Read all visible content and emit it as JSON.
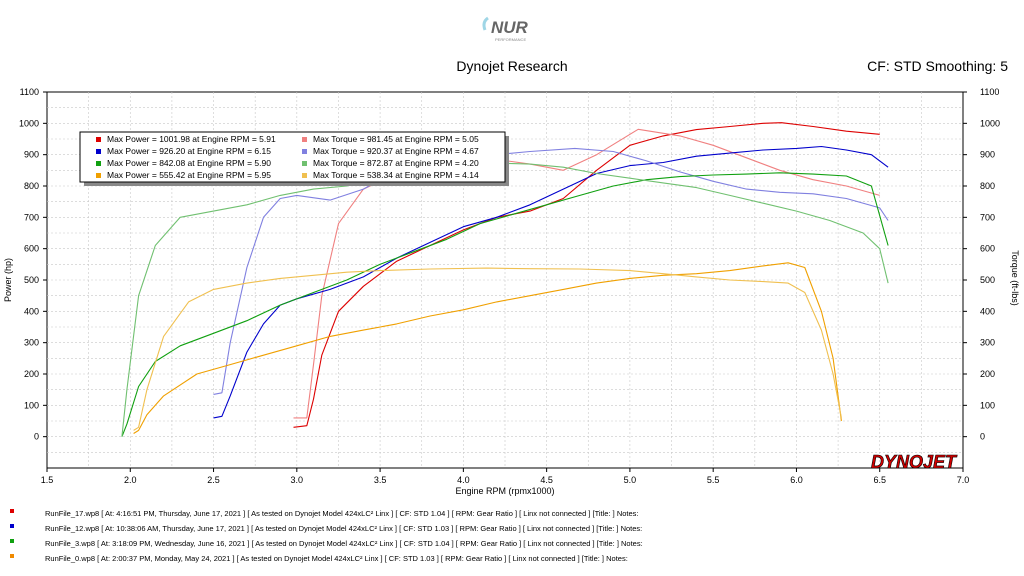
{
  "header": {
    "logo_text": "NUR",
    "logo_sub": "PERFORMANCE",
    "title": "Dynojet Research",
    "cf_info": "CF: STD Smoothing: 5",
    "brand": "DYNOJET"
  },
  "chart_data": {
    "type": "line",
    "title": "Dynojet Research",
    "xlabel": "Engine RPM (rpmx1000)",
    "ylabel_left": "Power (hp)",
    "ylabel_right": "Torque (ft-lbs)",
    "xlim": [
      1.5,
      7.0
    ],
    "ylim": [
      -100,
      1100
    ],
    "x_ticks": [
      "1.5",
      "2.0",
      "2.5",
      "3.0",
      "3.5",
      "4.0",
      "4.5",
      "5.0",
      "5.5",
      "6.0",
      "6.5",
      "7.0"
    ],
    "y_ticks": [
      "1100",
      "1000",
      "900",
      "800",
      "700",
      "600",
      "500",
      "400",
      "300",
      "200",
      "100",
      "0"
    ],
    "grid": true,
    "legend_position": "top-left",
    "legend": [
      {
        "text": "Max Power = 1001.98 at Engine RPM = 5.91",
        "color": "#dd0000"
      },
      {
        "text": "Max Torque = 981.45 at Engine RPM = 5.05",
        "color": "#f08080"
      },
      {
        "text": "Max Power = 926.20 at Engine RPM = 6.15",
        "color": "#0000cc"
      },
      {
        "text": "Max Torque = 920.37 at Engine RPM = 4.67",
        "color": "#8080e0"
      },
      {
        "text": "Max Power = 842.08 at Engine RPM = 5.90",
        "color": "#10a010"
      },
      {
        "text": "Max Torque = 872.87 at Engine RPM = 4.20",
        "color": "#70c070"
      },
      {
        "text": "Max Power = 555.42 at Engine RPM = 5.95",
        "color": "#f0a000"
      },
      {
        "text": "Max Torque = 538.34 at Engine RPM = 4.14",
        "color": "#f0c050"
      }
    ],
    "series": [
      {
        "name": "Max Power = 1001.98 at Engine RPM = 5.91",
        "kind": "power",
        "color": "#dd0000",
        "points": [
          [
            2.98,
            30
          ],
          [
            3.06,
            35
          ],
          [
            3.1,
            120
          ],
          [
            3.15,
            260
          ],
          [
            3.25,
            400
          ],
          [
            3.4,
            480
          ],
          [
            3.6,
            560
          ],
          [
            3.8,
            610
          ],
          [
            4.0,
            660
          ],
          [
            4.2,
            700
          ],
          [
            4.4,
            720
          ],
          [
            4.6,
            760
          ],
          [
            4.8,
            850
          ],
          [
            5.0,
            930
          ],
          [
            5.2,
            960
          ],
          [
            5.4,
            980
          ],
          [
            5.6,
            990
          ],
          [
            5.8,
            1000
          ],
          [
            5.91,
            1002
          ],
          [
            6.1,
            990
          ],
          [
            6.3,
            975
          ],
          [
            6.5,
            965
          ]
        ]
      },
      {
        "name": "Max Torque = 981.45 at Engine RPM = 5.05",
        "kind": "torque",
        "color": "#f08080",
        "points": [
          [
            2.98,
            60
          ],
          [
            3.06,
            60
          ],
          [
            3.1,
            230
          ],
          [
            3.15,
            450
          ],
          [
            3.25,
            680
          ],
          [
            3.4,
            790
          ],
          [
            3.6,
            840
          ],
          [
            3.8,
            865
          ],
          [
            4.0,
            880
          ],
          [
            4.2,
            885
          ],
          [
            4.4,
            870
          ],
          [
            4.6,
            850
          ],
          [
            4.8,
            900
          ],
          [
            5.05,
            981
          ],
          [
            5.3,
            960
          ],
          [
            5.5,
            930
          ],
          [
            5.7,
            890
          ],
          [
            5.9,
            850
          ],
          [
            6.1,
            820
          ],
          [
            6.3,
            800
          ],
          [
            6.5,
            770
          ]
        ]
      },
      {
        "name": "Max Power = 926.20 at Engine RPM = 6.15",
        "kind": "power",
        "color": "#0000cc",
        "points": [
          [
            2.5,
            60
          ],
          [
            2.55,
            65
          ],
          [
            2.6,
            130
          ],
          [
            2.7,
            270
          ],
          [
            2.8,
            360
          ],
          [
            2.9,
            420
          ],
          [
            3.0,
            440
          ],
          [
            3.2,
            470
          ],
          [
            3.4,
            510
          ],
          [
            3.6,
            570
          ],
          [
            3.8,
            620
          ],
          [
            4.0,
            670
          ],
          [
            4.2,
            700
          ],
          [
            4.4,
            740
          ],
          [
            4.6,
            790
          ],
          [
            4.8,
            840
          ],
          [
            5.0,
            865
          ],
          [
            5.2,
            875
          ],
          [
            5.4,
            895
          ],
          [
            5.6,
            905
          ],
          [
            5.8,
            915
          ],
          [
            6.0,
            920
          ],
          [
            6.15,
            926
          ],
          [
            6.3,
            915
          ],
          [
            6.45,
            900
          ],
          [
            6.55,
            860
          ]
        ]
      },
      {
        "name": "Max Torque = 920.37 at Engine RPM = 4.67",
        "kind": "torque",
        "color": "#8080e0",
        "points": [
          [
            2.5,
            135
          ],
          [
            2.55,
            140
          ],
          [
            2.6,
            300
          ],
          [
            2.7,
            540
          ],
          [
            2.8,
            700
          ],
          [
            2.9,
            760
          ],
          [
            3.0,
            770
          ],
          [
            3.2,
            755
          ],
          [
            3.4,
            790
          ],
          [
            3.6,
            850
          ],
          [
            3.8,
            880
          ],
          [
            4.0,
            895
          ],
          [
            4.2,
            900
          ],
          [
            4.4,
            910
          ],
          [
            4.67,
            920
          ],
          [
            4.9,
            910
          ],
          [
            5.1,
            880
          ],
          [
            5.3,
            845
          ],
          [
            5.5,
            815
          ],
          [
            5.7,
            790
          ],
          [
            5.9,
            780
          ],
          [
            6.1,
            775
          ],
          [
            6.3,
            760
          ],
          [
            6.5,
            730
          ],
          [
            6.55,
            690
          ]
        ]
      },
      {
        "name": "Max Power = 842.08 at Engine RPM = 5.90",
        "kind": "power",
        "color": "#10a010",
        "points": [
          [
            1.95,
            0
          ],
          [
            1.98,
            40
          ],
          [
            2.05,
            160
          ],
          [
            2.15,
            240
          ],
          [
            2.3,
            290
          ],
          [
            2.5,
            330
          ],
          [
            2.7,
            370
          ],
          [
            2.9,
            420
          ],
          [
            3.1,
            460
          ],
          [
            3.3,
            500
          ],
          [
            3.5,
            550
          ],
          [
            3.7,
            590
          ],
          [
            3.9,
            630
          ],
          [
            4.1,
            680
          ],
          [
            4.3,
            710
          ],
          [
            4.5,
            740
          ],
          [
            4.7,
            770
          ],
          [
            4.9,
            800
          ],
          [
            5.1,
            820
          ],
          [
            5.3,
            830
          ],
          [
            5.5,
            835
          ],
          [
            5.7,
            838
          ],
          [
            5.9,
            842
          ],
          [
            6.1,
            838
          ],
          [
            6.3,
            832
          ],
          [
            6.45,
            800
          ],
          [
            6.55,
            610
          ]
        ]
      },
      {
        "name": "Max Torque = 872.87 at Engine RPM = 4.20",
        "kind": "torque",
        "color": "#70c070",
        "points": [
          [
            1.95,
            0
          ],
          [
            1.98,
            150
          ],
          [
            2.05,
            450
          ],
          [
            2.15,
            610
          ],
          [
            2.3,
            700
          ],
          [
            2.5,
            720
          ],
          [
            2.7,
            740
          ],
          [
            2.9,
            770
          ],
          [
            3.1,
            790
          ],
          [
            3.3,
            800
          ],
          [
            3.5,
            820
          ],
          [
            3.8,
            850
          ],
          [
            4.0,
            865
          ],
          [
            4.2,
            873
          ],
          [
            4.4,
            870
          ],
          [
            4.6,
            860
          ],
          [
            4.8,
            840
          ],
          [
            5.0,
            825
          ],
          [
            5.2,
            810
          ],
          [
            5.4,
            795
          ],
          [
            5.6,
            770
          ],
          [
            5.8,
            745
          ],
          [
            6.0,
            720
          ],
          [
            6.2,
            690
          ],
          [
            6.4,
            650
          ],
          [
            6.5,
            600
          ],
          [
            6.55,
            490
          ]
        ]
      },
      {
        "name": "Max Power = 555.42 at Engine RPM = 5.95",
        "kind": "power",
        "color": "#f0a000",
        "points": [
          [
            2.02,
            10
          ],
          [
            2.05,
            20
          ],
          [
            2.1,
            70
          ],
          [
            2.2,
            130
          ],
          [
            2.4,
            200
          ],
          [
            2.6,
            230
          ],
          [
            2.8,
            260
          ],
          [
            3.0,
            290
          ],
          [
            3.2,
            320
          ],
          [
            3.4,
            340
          ],
          [
            3.6,
            360
          ],
          [
            3.8,
            385
          ],
          [
            4.0,
            405
          ],
          [
            4.2,
            430
          ],
          [
            4.4,
            450
          ],
          [
            4.6,
            470
          ],
          [
            4.8,
            490
          ],
          [
            5.0,
            505
          ],
          [
            5.2,
            515
          ],
          [
            5.4,
            520
          ],
          [
            5.6,
            530
          ],
          [
            5.8,
            545
          ],
          [
            5.95,
            555
          ],
          [
            6.05,
            540
          ],
          [
            6.15,
            400
          ],
          [
            6.22,
            250
          ],
          [
            6.27,
            50
          ]
        ]
      },
      {
        "name": "Max Torque = 538.34 at Engine RPM = 4.14",
        "kind": "torque",
        "color": "#f0c050",
        "points": [
          [
            2.02,
            20
          ],
          [
            2.05,
            30
          ],
          [
            2.1,
            150
          ],
          [
            2.2,
            320
          ],
          [
            2.35,
            430
          ],
          [
            2.5,
            470
          ],
          [
            2.7,
            490
          ],
          [
            2.9,
            505
          ],
          [
            3.1,
            515
          ],
          [
            3.3,
            525
          ],
          [
            3.5,
            530
          ],
          [
            3.8,
            535
          ],
          [
            4.14,
            538
          ],
          [
            4.4,
            536
          ],
          [
            4.7,
            535
          ],
          [
            5.0,
            530
          ],
          [
            5.2,
            520
          ],
          [
            5.4,
            510
          ],
          [
            5.6,
            500
          ],
          [
            5.8,
            495
          ],
          [
            5.95,
            490
          ],
          [
            6.05,
            460
          ],
          [
            6.15,
            340
          ],
          [
            6.22,
            200
          ],
          [
            6.27,
            60
          ]
        ]
      }
    ]
  },
  "runs": [
    {
      "color": "#dd0000",
      "text": "RunFile_17.wp8  [ At:  4:16:51 PM, Thursday, June 17, 2021 ]  [ As tested on Dynojet Model 424xLC² Linx ]  [ CF: STD 1.04 ]  [ RPM: Gear Ratio ]  [ Linx not connected ]  [Title:  ]   Notes:"
    },
    {
      "color": "#0000cc",
      "text": "RunFile_12.wp8  [ At:  10:38:06 AM, Thursday, June 17, 2021 ]  [ As tested on Dynojet Model 424xLC² Linx ]  [ CF: STD 1.03 ]  [ RPM: Gear Ratio ]  [ Linx not connected ]  [Title:  ]   Notes:"
    },
    {
      "color": "#10a010",
      "text": "RunFile_3.wp8  [ At:  3:18:09 PM, Wednesday, June 16, 2021 ]  [ As tested on Dynojet Model 424xLC² Linx ]  [ CF: STD 1.04 ]  [ RPM: Gear Ratio ]  [ Linx not connected ]  [Title:  ]   Notes:"
    },
    {
      "color": "#f08a00",
      "text": "RunFile_0.wp8  [ At:  2:00:37 PM, Monday, May 24, 2021 ]  [ As tested on Dynojet Model 424xLC² Linx ]  [ CF: STD 1.03 ]  [ RPM: Gear Ratio ]  [ Linx not connected ]  [Title:  ]   Notes:"
    }
  ]
}
